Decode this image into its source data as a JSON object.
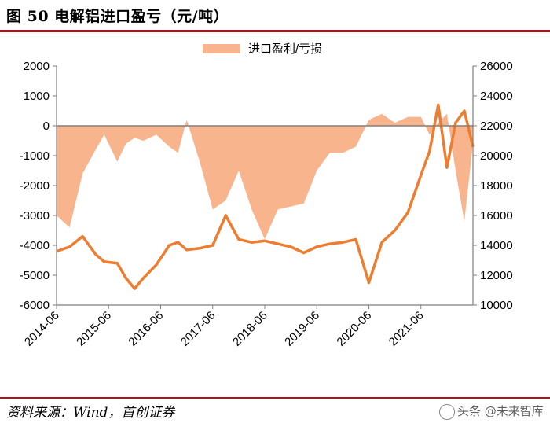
{
  "header": {
    "title": "图 50 电解铝进口盈亏（元/吨）"
  },
  "footer": {
    "source": "资料来源：Wind，首创证券",
    "watermark": "头条 @未来智库"
  },
  "chart_data": {
    "type": "area",
    "legend": {
      "label": "进口盈利/亏损",
      "position": "top-center"
    },
    "colors": {
      "area": "#f8b48c",
      "line": "#ed7d31",
      "axis": "#7f7f7f"
    },
    "x_ticks": [
      "2014-06",
      "2015-06",
      "2016-06",
      "2017-06",
      "2018-06",
      "2019-06",
      "2020-06",
      "2021-06"
    ],
    "x_range": [
      "2014-06",
      "2022-06"
    ],
    "y_left_ticks": [
      2000,
      1000,
      0,
      -1000,
      -2000,
      -3000,
      -4000,
      -5000,
      -6000
    ],
    "y_left_range": [
      -6000,
      2000
    ],
    "y_right_ticks": [
      26000,
      24000,
      22000,
      20000,
      18000,
      16000,
      14000,
      12000,
      10000
    ],
    "y_right_range": [
      10000,
      26000
    ],
    "grid": false,
    "series": [
      {
        "name": "进口盈利/亏损",
        "axis": "left",
        "kind": "area",
        "x": [
          "2014-06",
          "2014-09",
          "2014-12",
          "2015-03",
          "2015-05",
          "2015-08",
          "2015-10",
          "2015-12",
          "2016-02",
          "2016-05",
          "2016-08",
          "2016-10",
          "2016-12",
          "2017-03",
          "2017-06",
          "2017-09",
          "2017-12",
          "2018-03",
          "2018-06",
          "2018-09",
          "2018-12",
          "2019-03",
          "2019-06",
          "2019-09",
          "2019-12",
          "2020-03",
          "2020-06",
          "2020-09",
          "2020-12",
          "2021-03",
          "2021-06",
          "2021-08",
          "2021-10",
          "2021-12",
          "2022-02",
          "2022-04",
          "2022-06"
        ],
        "y": [
          -3000,
          -3400,
          -1600,
          -800,
          -300,
          -1200,
          -600,
          -400,
          -500,
          -300,
          -700,
          -900,
          200,
          -1200,
          -2800,
          -2500,
          -1500,
          -2800,
          -3800,
          -2800,
          -2700,
          -2600,
          -1500,
          -900,
          -900,
          -700,
          200,
          400,
          100,
          300,
          300,
          -300,
          100,
          400,
          -1500,
          -3200,
          -600
        ]
      },
      {
        "name": "",
        "axis": "right",
        "kind": "line",
        "x": [
          "2014-06",
          "2014-09",
          "2014-12",
          "2015-03",
          "2015-05",
          "2015-08",
          "2015-10",
          "2015-12",
          "2016-02",
          "2016-05",
          "2016-08",
          "2016-10",
          "2016-12",
          "2017-03",
          "2017-06",
          "2017-09",
          "2017-12",
          "2018-03",
          "2018-06",
          "2018-09",
          "2018-12",
          "2019-03",
          "2019-06",
          "2019-09",
          "2019-12",
          "2020-03",
          "2020-06",
          "2020-09",
          "2020-12",
          "2021-03",
          "2021-06",
          "2021-08",
          "2021-10",
          "2021-12",
          "2022-02",
          "2022-04",
          "2022-06"
        ],
        "y": [
          13600,
          13900,
          14600,
          13400,
          12900,
          12800,
          11800,
          11100,
          11800,
          12700,
          14000,
          14200,
          13700,
          13800,
          14000,
          16000,
          14400,
          14200,
          14300,
          14100,
          13900,
          13500,
          13900,
          14100,
          14200,
          14400,
          11500,
          14200,
          15000,
          16200,
          18700,
          20300,
          23400,
          19200,
          22200,
          23000,
          20600
        ]
      }
    ]
  }
}
